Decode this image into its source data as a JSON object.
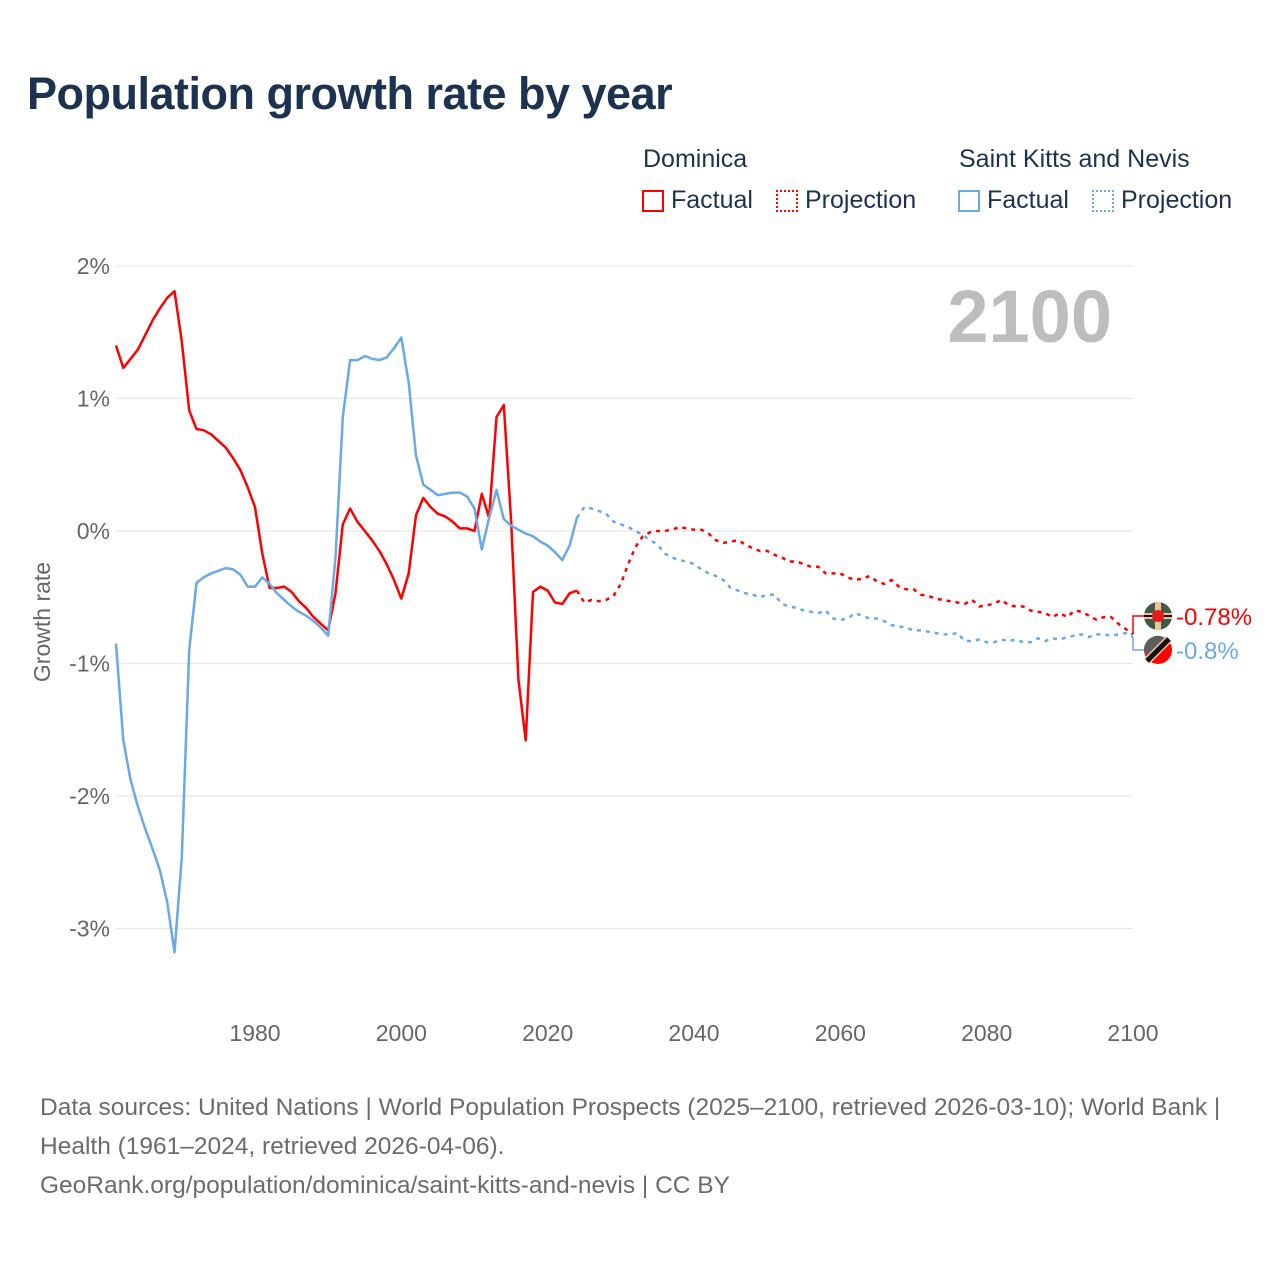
{
  "title": "Population growth rate by year",
  "legend": {
    "groups": [
      {
        "name": "Dominica",
        "factual": "Factual",
        "projection": "Projection",
        "color": "#ff0000"
      },
      {
        "name": "Saint Kitts and Nevis",
        "factual": "Factual",
        "projection": "Projection",
        "color": "#6aa8e8"
      }
    ]
  },
  "footer": {
    "line1": "Data sources: United Nations | World Population Prospects (2025–2100, retrieved 2026-03-10); World Bank | Health (1961–2024, retrieved 2026-04-06).",
    "line2": "GeoRank.org/population/dominica/saint-kitts-and-nevis | CC BY"
  },
  "chart_data": {
    "type": "line",
    "title": "Population growth rate by year",
    "xlabel": "",
    "ylabel": "Growth rate",
    "xlim": [
      1961,
      2100
    ],
    "ylim": [
      -3.5,
      2.0
    ],
    "x_ticks": [
      {
        "v": 1980,
        "label": "1980"
      },
      {
        "v": 2000,
        "label": "2000"
      },
      {
        "v": 2020,
        "label": "2020"
      },
      {
        "v": 2040,
        "label": "2040"
      },
      {
        "v": 2060,
        "label": "2060"
      },
      {
        "v": 2080,
        "label": "2080"
      },
      {
        "v": 2100,
        "label": "2100"
      }
    ],
    "y_ticks": [
      {
        "v": 2,
        "label": "2%"
      },
      {
        "v": 1,
        "label": "1%"
      },
      {
        "v": 0,
        "label": "0%"
      },
      {
        "v": -1,
        "label": "-1%"
      },
      {
        "v": -2,
        "label": "-2%"
      },
      {
        "v": -3,
        "label": "-3%"
      }
    ],
    "grid": true,
    "year_label": "2100",
    "series": [
      {
        "name": "Dominica",
        "color": "#ff0000",
        "end_label": "-0.78%",
        "factual_start": 1961,
        "factual": [
          1.4,
          1.23,
          1.3,
          1.37,
          1.48,
          1.59,
          1.68,
          1.76,
          1.81,
          1.43,
          0.91,
          0.77,
          0.76,
          0.73,
          0.68,
          0.63,
          0.55,
          0.46,
          0.33,
          0.18,
          -0.17,
          -0.43,
          -0.43,
          -0.42,
          -0.46,
          -0.53,
          -0.58,
          -0.65,
          -0.7,
          -0.75,
          -0.47,
          0.05,
          0.17,
          0.07,
          0.0,
          -0.07,
          -0.15,
          -0.25,
          -0.37,
          -0.51,
          -0.32,
          0.12,
          0.25,
          0.18,
          0.13,
          0.11,
          0.07,
          0.02,
          0.02,
          0.0,
          0.28,
          0.1,
          0.86,
          0.95,
          0.08,
          -1.12,
          -1.58,
          -0.46,
          -0.42,
          -0.45,
          -0.54,
          -0.55,
          -0.47,
          -0.45
        ],
        "projection_start": 2024,
        "projection": [
          -0.45,
          -0.54,
          -0.52,
          -0.53,
          -0.52,
          -0.49,
          -0.4,
          -0.25,
          -0.12,
          -0.04,
          -0.01,
          0.0,
          0.0,
          0.01,
          0.03,
          0.02,
          0.01,
          0.01,
          -0.02,
          -0.07,
          -0.09,
          -0.08,
          -0.07,
          -0.1,
          -0.13,
          -0.15,
          -0.15,
          -0.18,
          -0.2,
          -0.23,
          -0.23,
          -0.25,
          -0.27,
          -0.27,
          -0.32,
          -0.32,
          -0.32,
          -0.35,
          -0.37,
          -0.36,
          -0.34,
          -0.38,
          -0.4,
          -0.37,
          -0.42,
          -0.44,
          -0.44,
          -0.48,
          -0.49,
          -0.51,
          -0.52,
          -0.53,
          -0.54,
          -0.55,
          -0.52,
          -0.57,
          -0.56,
          -0.55,
          -0.52,
          -0.56,
          -0.57,
          -0.57,
          -0.6,
          -0.61,
          -0.62,
          -0.65,
          -0.62,
          -0.65,
          -0.6,
          -0.61,
          -0.64,
          -0.67,
          -0.65,
          -0.65,
          -0.7,
          -0.74,
          -0.78
        ]
      },
      {
        "name": "Saint Kitts and Nevis",
        "color": "#6aa8e8",
        "end_label": "-0.8%",
        "factual_start": 1961,
        "factual": [
          -0.85,
          -1.58,
          -1.88,
          -2.08,
          -2.25,
          -2.4,
          -2.56,
          -2.8,
          -3.18,
          -2.46,
          -0.9,
          -0.39,
          -0.35,
          -0.32,
          -0.3,
          -0.28,
          -0.29,
          -0.33,
          -0.42,
          -0.42,
          -0.35,
          -0.4,
          -0.47,
          -0.52,
          -0.57,
          -0.61,
          -0.64,
          -0.68,
          -0.73,
          -0.79,
          -0.2,
          0.86,
          1.29,
          1.29,
          1.32,
          1.3,
          1.29,
          1.31,
          1.38,
          1.46,
          1.12,
          0.57,
          0.35,
          0.31,
          0.27,
          0.28,
          0.29,
          0.29,
          0.26,
          0.17,
          -0.14,
          0.1,
          0.31,
          0.09,
          0.04,
          0.01,
          -0.02,
          -0.04,
          -0.08,
          -0.11,
          -0.16,
          -0.22,
          -0.11,
          0.1
        ],
        "projection_start": 2024,
        "projection": [
          0.1,
          0.18,
          0.17,
          0.15,
          0.13,
          0.07,
          0.05,
          0.03,
          0.0,
          -0.03,
          -0.07,
          -0.1,
          -0.17,
          -0.2,
          -0.22,
          -0.23,
          -0.25,
          -0.29,
          -0.32,
          -0.34,
          -0.37,
          -0.43,
          -0.45,
          -0.47,
          -0.48,
          -0.5,
          -0.48,
          -0.48,
          -0.55,
          -0.57,
          -0.58,
          -0.6,
          -0.61,
          -0.62,
          -0.6,
          -0.66,
          -0.67,
          -0.66,
          -0.62,
          -0.64,
          -0.66,
          -0.66,
          -0.68,
          -0.71,
          -0.72,
          -0.73,
          -0.75,
          -0.75,
          -0.76,
          -0.77,
          -0.78,
          -0.78,
          -0.77,
          -0.83,
          -0.83,
          -0.82,
          -0.84,
          -0.84,
          -0.82,
          -0.83,
          -0.82,
          -0.84,
          -0.84,
          -0.81,
          -0.83,
          -0.81,
          -0.82,
          -0.8,
          -0.79,
          -0.78,
          -0.8,
          -0.78,
          -0.78,
          -0.79,
          -0.78,
          -0.77,
          -0.8
        ]
      }
    ]
  }
}
